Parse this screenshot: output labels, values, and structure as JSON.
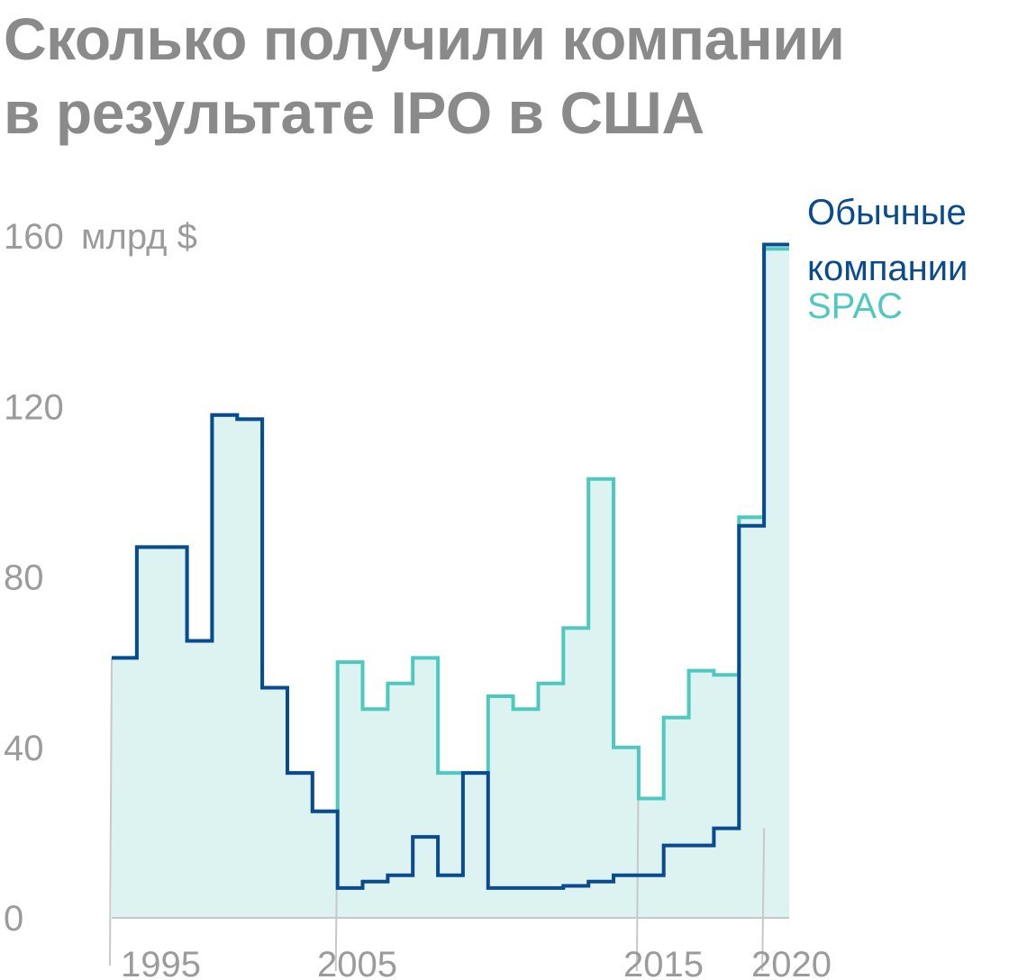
{
  "title_line1": "Сколько получили компании",
  "title_line2": "в результате IPO в США",
  "colors": {
    "regular": "#0a4a8f",
    "spac": "#4fc8c0",
    "fill": "#ddf3f1",
    "axis": "#c8c8c8"
  },
  "chart_data": {
    "type": "area",
    "title": "Сколько получили компании в результате IPO в США",
    "y_unit_label": "млрд $",
    "ylim": [
      0,
      160
    ],
    "xlim": [
      1995,
      2022
    ],
    "y_ticks": [
      0,
      40,
      80,
      120,
      160
    ],
    "y_tick_labels": [
      "0",
      "40",
      "80",
      "120",
      "160"
    ],
    "x_ticks": [
      1995,
      2005,
      2015,
      2020
    ],
    "x_tick_labels": [
      "1995",
      "2005",
      "2015",
      "2020"
    ],
    "legend_position": "top-right",
    "step": true,
    "x": [
      1995,
      1996,
      1997,
      1998,
      1999,
      2000,
      2001,
      2002,
      2003,
      2004,
      2005,
      2006,
      2007,
      2008,
      2009,
      2010,
      2011,
      2012,
      2013,
      2014,
      2015,
      2016,
      2017,
      2018,
      2019,
      2020,
      2021
    ],
    "series": [
      {
        "name": "Обычные компании",
        "values": [
          61,
          87,
          87,
          65,
          118,
          117,
          54,
          34,
          25,
          7,
          8.5,
          10,
          19,
          10,
          34,
          7,
          7,
          7,
          7.5,
          8.5,
          10,
          10,
          17,
          17,
          21,
          92,
          158
        ]
      },
      {
        "name": "SPAC",
        "values": [
          61,
          87,
          87,
          65,
          118,
          117,
          54,
          34,
          25,
          60,
          49,
          55,
          61,
          34,
          34,
          52,
          49,
          55,
          68,
          103,
          40,
          28,
          47,
          58,
          57,
          94,
          157
        ]
      }
    ]
  }
}
